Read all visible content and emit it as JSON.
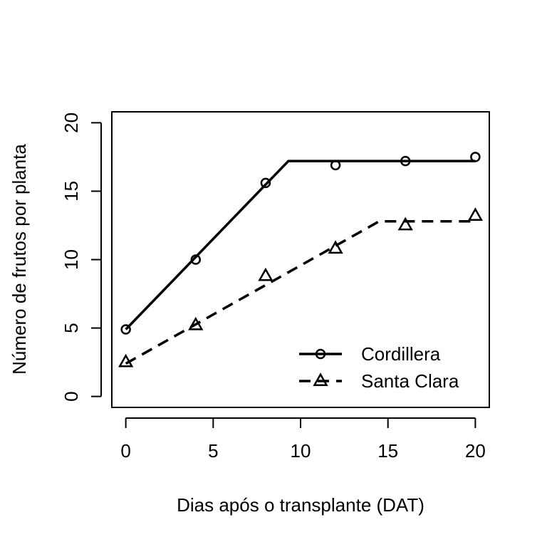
{
  "chart_data": {
    "type": "scatter",
    "xlabel": "Dias após o transplante (DAT)",
    "ylabel": "Número de frutos por planta",
    "xlim": [
      -0.8,
      20.8
    ],
    "ylim": [
      -0.8,
      20.8
    ],
    "x_ticks": [
      0,
      5,
      10,
      15,
      20
    ],
    "y_ticks": [
      0,
      5,
      10,
      15,
      20
    ],
    "x_tick_labels": [
      "0",
      "5",
      "10",
      "15",
      "20"
    ],
    "y_tick_labels": [
      "0",
      "5",
      "10",
      "15",
      "20"
    ],
    "grid": false,
    "legend_position": "bottom-right",
    "series": [
      {
        "name": "Cordillera",
        "marker": "circle",
        "line_style": "solid",
        "color": "#000000",
        "x": [
          0,
          4,
          8,
          12,
          16,
          20
        ],
        "y": [
          4.9,
          10.0,
          15.6,
          16.9,
          17.2,
          17.5
        ],
        "fit": [
          [
            0,
            4.9
          ],
          [
            9.3,
            17.2
          ],
          [
            20,
            17.2
          ]
        ]
      },
      {
        "name": "Santa Clara",
        "marker": "triangle",
        "line_style": "dashed",
        "color": "#000000",
        "x": [
          0,
          4,
          8,
          12,
          16,
          20
        ],
        "y": [
          2.5,
          5.2,
          8.8,
          10.8,
          12.5,
          13.2
        ],
        "fit": [
          [
            0,
            2.4
          ],
          [
            14.5,
            12.8
          ],
          [
            20,
            12.8
          ]
        ]
      }
    ]
  }
}
